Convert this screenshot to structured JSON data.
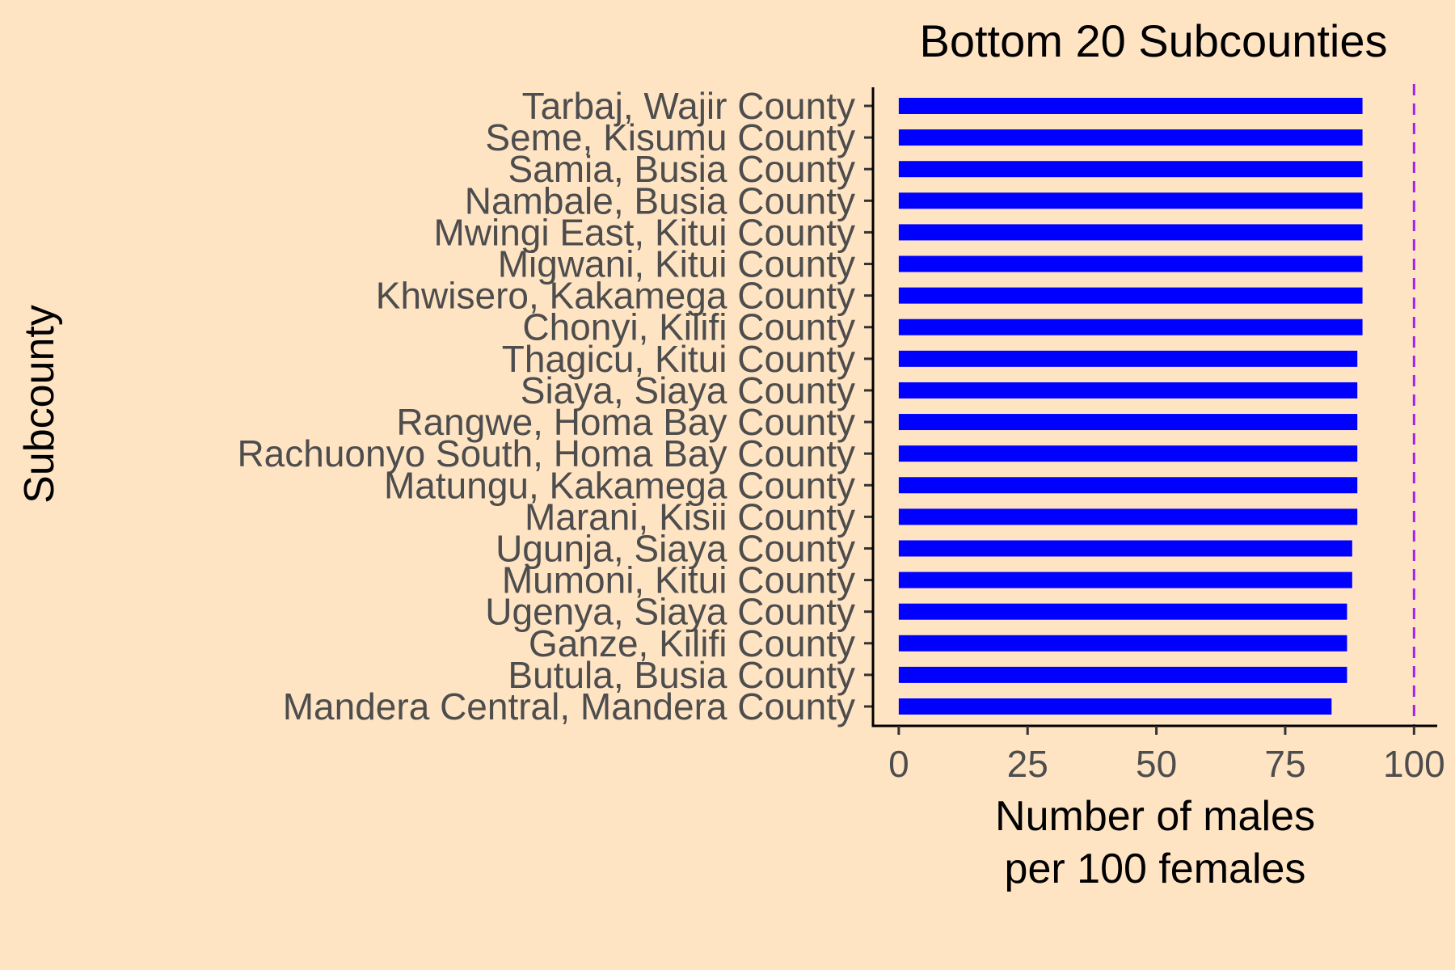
{
  "chart_data": {
    "type": "bar",
    "orientation": "horizontal",
    "title": "Bottom 20 Subcounties",
    "xlabel": [
      "Number of males",
      "per 100 females"
    ],
    "ylabel": "Subcounty",
    "categories": [
      "Tarbaj, Wajir County",
      "Seme, Kisumu County",
      "Samia, Busia County",
      "Nambale, Busia County",
      "Mwingi East, Kitui County",
      "Migwani, Kitui County",
      "Khwisero, Kakamega County",
      "Chonyi, Kilifi County",
      "Thagicu, Kitui County",
      "Siaya, Siaya County",
      "Rangwe, Homa Bay County",
      "Rachuonyo South, Homa Bay County",
      "Matungu, Kakamega County",
      "Marani, Kisii County",
      "Ugunja, Siaya County",
      "Mumoni, Kitui County",
      "Ugenya, Siaya County",
      "Ganze, Kilifi County",
      "Butula, Busia County",
      "Mandera Central, Mandera County"
    ],
    "values": [
      90,
      90,
      90,
      90,
      90,
      90,
      90,
      90,
      89,
      89,
      89,
      89,
      89,
      89,
      88,
      88,
      87,
      87,
      87,
      84
    ],
    "xlim": [
      -5,
      104.5
    ],
    "xticks": [
      0,
      25,
      50,
      75,
      100
    ],
    "xtick_labels": [
      "0",
      "25",
      "50",
      "75",
      "100"
    ],
    "reference_line": {
      "x": 100,
      "style": "dashed",
      "color": "#A020F0"
    },
    "bar_color": "#0000FF",
    "grid": false,
    "legend": "none"
  }
}
